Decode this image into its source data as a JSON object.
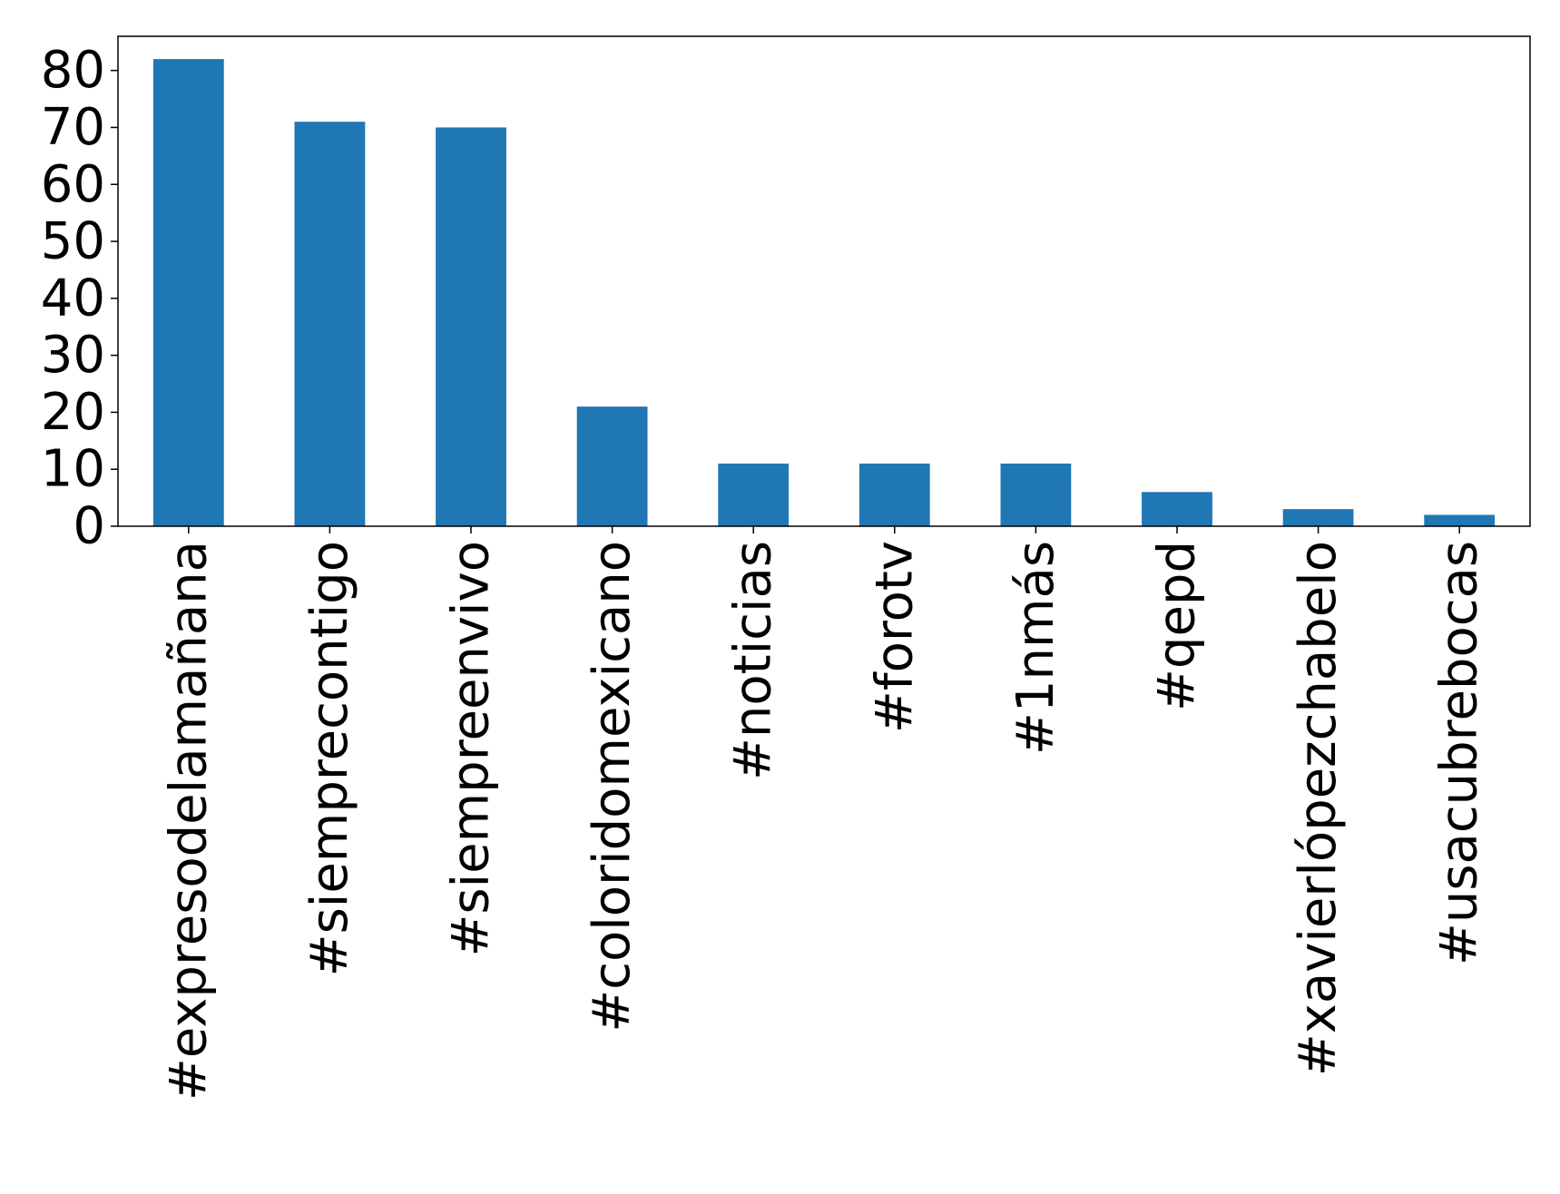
{
  "chart_data": {
    "type": "bar",
    "title": "",
    "xlabel": "",
    "ylabel": "",
    "categories": [
      "#expresodelamañana",
      "#siemprecontigo",
      "#siempreenvivo",
      "#coloridomexicano",
      "#noticias",
      "#forotv",
      "#1nmás",
      "#qepd",
      "#xavierlópezchabelo",
      "#usacubrebocas"
    ],
    "values": [
      82,
      71,
      70,
      21,
      11,
      11,
      11,
      6,
      3,
      2
    ],
    "ylim": [
      0,
      86
    ],
    "yticks": [
      0,
      10,
      20,
      30,
      40,
      50,
      60,
      70,
      80
    ],
    "bar_color": "#1f77b4",
    "grid": false,
    "legend": "none"
  }
}
